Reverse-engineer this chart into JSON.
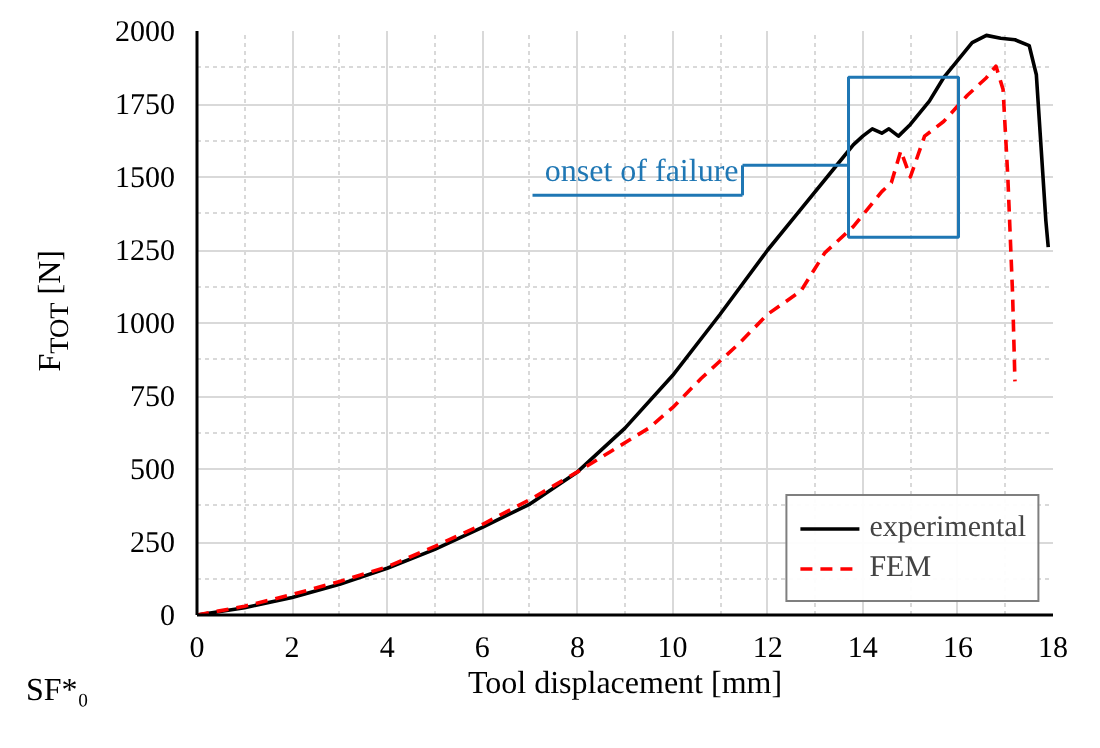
{
  "chart_data": {
    "type": "line",
    "xlabel": "Tool displacement [mm]",
    "ylabel": "F$_{TOT}$ [N]",
    "xlim": [
      0,
      18
    ],
    "xticks": [
      0,
      2,
      4,
      6,
      8,
      10,
      12,
      14,
      16,
      18
    ],
    "ylim": [
      0,
      2000
    ],
    "yticks": [
      0,
      250,
      500,
      750,
      1000,
      1250,
      1500,
      1750,
      2000
    ],
    "grid": true,
    "legend": "bottom right",
    "annotations": [
      {
        "text": "onset of failure",
        "x": 13.7,
        "y": 1540
      },
      "SF*₀"
    ],
    "series": [
      {
        "name": "experimental",
        "color": "#000000",
        "line_style": "solid",
        "x": [
          0,
          1,
          2,
          3,
          4,
          5,
          6,
          7,
          8,
          9,
          10,
          11,
          12,
          12.7,
          13.4,
          13.8,
          14.0,
          14.2,
          14.4,
          14.55,
          14.75,
          15.0,
          15.4,
          15.7,
          16.0,
          16.3,
          16.6,
          16.9,
          17.2,
          17.5,
          17.65,
          17.75,
          17.85,
          17.9
        ],
        "values": [
          0,
          25,
          60,
          105,
          160,
          225,
          300,
          380,
          490,
          640,
          820,
          1030,
          1250,
          1390,
          1530,
          1610,
          1640,
          1665,
          1650,
          1665,
          1640,
          1680,
          1760,
          1840,
          1900,
          1960,
          1985,
          1975,
          1970,
          1950,
          1850,
          1600,
          1350,
          1260
        ]
      },
      {
        "name": "FEM",
        "color": "#ff0000",
        "line_style": "dashed",
        "x": [
          0,
          1,
          2,
          3,
          4,
          5,
          6,
          7,
          8,
          8.7,
          9.5,
          10.0,
          10.6,
          11.4,
          12.0,
          12.7,
          13.2,
          13.8,
          14.4,
          14.6,
          14.8,
          15.0,
          15.3,
          15.7,
          16.2,
          16.6,
          16.8,
          16.95,
          17.05,
          17.15,
          17.2
        ],
        "values": [
          0,
          30,
          70,
          115,
          165,
          235,
          310,
          395,
          490,
          560,
          640,
          710,
          810,
          930,
          1030,
          1110,
          1240,
          1330,
          1450,
          1480,
          1590,
          1500,
          1640,
          1690,
          1780,
          1840,
          1880,
          1800,
          1500,
          1100,
          800
        ]
      }
    ]
  }
}
